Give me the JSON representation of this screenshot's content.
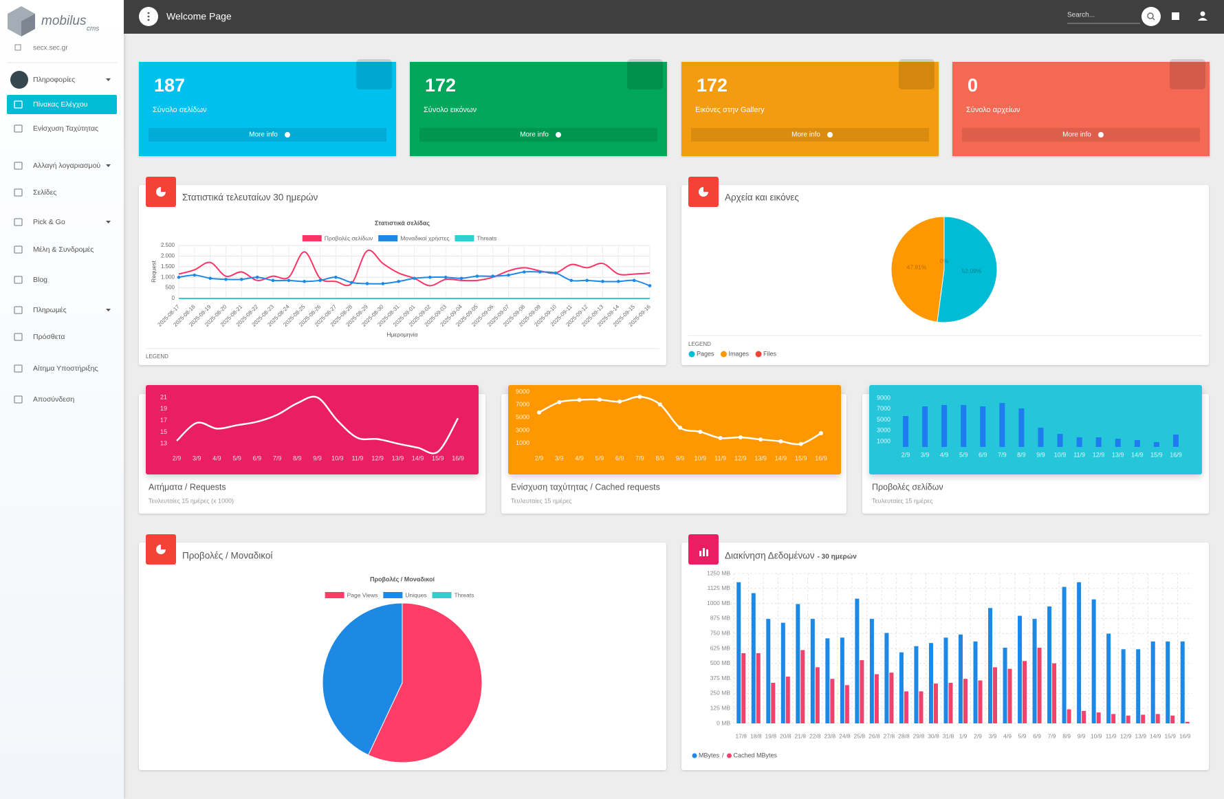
{
  "sidebar": {
    "logo": {
      "name": "mobilus",
      "sub": "cms"
    },
    "site": "secx.sec.gr",
    "menu": [
      {
        "label": "Πληροφορίες",
        "dropdown": true
      },
      {
        "label": "Πίνακας Ελέγχου",
        "active": true
      },
      {
        "label": "Ενίσχυση Ταχύτητας"
      },
      {
        "label": "Αλλαγή λογαριασμού",
        "dropdown": true
      },
      {
        "label": "Σελίδες"
      },
      {
        "label": "Pick & Go",
        "dropdown": true
      },
      {
        "label": "Μέλη & Συνδρομές"
      },
      {
        "label": "Blog"
      },
      {
        "label": "Πληρωμές",
        "dropdown": true
      },
      {
        "label": "Πρόσθετα"
      },
      {
        "label": "Αίτημα Υποστήριξης"
      },
      {
        "label": "Αποσύνδεση"
      }
    ]
  },
  "topbar": {
    "title": "Welcome Page",
    "search": "Search..."
  },
  "stats": [
    {
      "value": 187,
      "label": "Σύνολο σελίδων",
      "link": "More info",
      "color": "#00c0ef"
    },
    {
      "value": 172,
      "label": "Σύνολο εικόνων",
      "link": "More info",
      "color": "#00a65a"
    },
    {
      "value": 172,
      "label": "Εικόνες στην Gallery",
      "link": "More info",
      "color": "#f39c12"
    },
    {
      "value": 0,
      "label": "Σύνολο αρχείων",
      "link": "More info",
      "color": "#f56954"
    }
  ],
  "panels": [
    {
      "type": "line",
      "title": "Στατιστικά τελευταίων 30 ημερών",
      "chart_title": "Στατιστικά σελίδας",
      "ylabel": "Request",
      "xlabel": "Ημερομηνία",
      "legend_title": "LEGEND",
      "grid": true,
      "x": [
        "2025-08-17",
        "2025-08-18",
        "2025-08-19",
        "2025-08-20",
        "2025-08-21",
        "2025-08-22",
        "2025-08-23",
        "2025-08-24",
        "2025-08-25",
        "2025-08-26",
        "2025-08-27",
        "2025-08-28",
        "2025-08-29",
        "2025-08-30",
        "2025-08-31",
        "2025-09-01",
        "2025-09-02",
        "2025-09-03",
        "2025-09-04",
        "2025-09-05",
        "2025-09-06",
        "2025-09-07",
        "2025-09-08",
        "2025-09-09",
        "2025-09-10",
        "2025-09-11",
        "2025-09-12",
        "2025-09-13",
        "2025-09-14",
        "2025-09-15",
        "2025-09-16"
      ],
      "ylim": [
        0,
        2500
      ],
      "yticks": [
        0,
        500,
        {
          "value": 1000,
          "label": "1.000"
        },
        {
          "value": 1500,
          "label": "1.500"
        },
        {
          "value": 2000,
          "label": "2.000"
        },
        {
          "value": 2500,
          "label": "2.500"
        }
      ],
      "series": [
        {
          "name": "Προβολές σελίδων",
          "color": "#ff3366",
          "markers": false,
          "values": [
            1150,
            1350,
            1700,
            1050,
            1250,
            850,
            1050,
            1000,
            2200,
            950,
            800,
            700,
            2250,
            1650,
            1200,
            950,
            600,
            900,
            850,
            850,
            1000,
            1300,
            1450,
            1300,
            1200,
            1600,
            1450,
            1650,
            1150,
            1150,
            1200
          ]
        },
        {
          "name": "Μοναδικοί χρήστες",
          "color": "#1e88e5",
          "markers": true,
          "values": [
            1000,
            1100,
            950,
            900,
            900,
            1000,
            850,
            850,
            800,
            850,
            1000,
            750,
            700,
            700,
            800,
            950,
            1000,
            1000,
            950,
            1050,
            1050,
            1100,
            1250,
            1250,
            1200,
            850,
            850,
            800,
            800,
            850,
            600
          ]
        },
        {
          "name": "Threats",
          "color": "#2ecfcf",
          "markers": false,
          "values": [
            0,
            0,
            0,
            0,
            0,
            0,
            0,
            0,
            0,
            0,
            0,
            0,
            0,
            0,
            0,
            0,
            0,
            0,
            0,
            0,
            0,
            0,
            0,
            0,
            0,
            0,
            0,
            0,
            0,
            0,
            0
          ]
        }
      ]
    },
    {
      "type": "pie",
      "title": "Αρχεία και εικόνες",
      "legend_title": "LEGEND",
      "categories": [
        "Pages",
        "Images",
        "Files"
      ],
      "values": [
        52.09,
        47.91,
        0
      ],
      "value_labels": [
        "52.09%",
        "47.91%",
        "0%"
      ],
      "colors": [
        "#00bcd4",
        "#ff9800",
        "#f44336"
      ]
    },
    {
      "type": "line",
      "title": "Αιτήματα / Requests",
      "subtitle": "Τευλευταίες 15 ημέρες (x 1000)",
      "background": "#e91e63",
      "color": "#ffffff",
      "markers": false,
      "grid": false,
      "categories": [
        "2/9",
        "3/9",
        "4/9",
        "5/9",
        "6/9",
        "7/9",
        "8/9",
        "9/9",
        "10/9",
        "11/9",
        "12/9",
        "13/9",
        "14/9",
        "15/9",
        "16/9"
      ],
      "values": [
        13.5,
        16.6,
        15.6,
        16.2,
        16.8,
        18,
        20,
        21,
        17,
        14,
        13.8,
        13,
        12.3,
        11.6,
        17.4
      ],
      "ylim": [
        11,
        21
      ],
      "yticks": [
        13,
        15,
        17,
        19,
        21
      ]
    },
    {
      "type": "line",
      "title": "Ενίσχυση ταχύτητας / Cached requests",
      "subtitle": "Τευλευταίες 15 ημέρες",
      "background": "#ff9800",
      "color": "#ffffff",
      "markers": true,
      "grid": false,
      "categories": [
        "2/9",
        "3/9",
        "4/9",
        "5/9",
        "6/9",
        "7/9",
        "8/9",
        "9/9",
        "10/9",
        "11/9",
        "12/9",
        "13/9",
        "14/9",
        "15/9",
        "16/9"
      ],
      "values": [
        5800,
        7400,
        7750,
        7800,
        7500,
        8250,
        7070,
        3430,
        2790,
        1820,
        1930,
        1600,
        1300,
        900,
        2570
      ],
      "ylim": [
        0,
        9000
      ],
      "yticks": [
        1000,
        3000,
        5000,
        7000,
        9000
      ]
    },
    {
      "type": "bar",
      "title": "Προβολές σελίδων",
      "subtitle": "Τευλευταίες 15 ημέρες",
      "background": "#26c6da",
      "color": "#1e7bf0",
      "grid": false,
      "categories": [
        "2/9",
        "3/9",
        "4/9",
        "5/9",
        "6/9",
        "7/9",
        "8/9",
        "9/9",
        "10/9",
        "11/9",
        "12/9",
        "13/9",
        "14/9",
        "15/9",
        "16/9"
      ],
      "values": [
        5700,
        7480,
        7730,
        7730,
        7480,
        8110,
        7100,
        3550,
        2400,
        1770,
        1770,
        1520,
        1270,
        890,
        2280
      ],
      "ylim": [
        0,
        9000
      ],
      "yticks": [
        1000,
        3000,
        5000,
        7000,
        9000
      ]
    },
    {
      "type": "pie",
      "title": "Προβολές / Μοναδικοί",
      "chart_title": "Προβολές / Μοναδικοί",
      "categories": [
        "Page Views",
        "Uniques",
        "Threats"
      ],
      "values": [
        57,
        43,
        0
      ],
      "colors": [
        "#ff3d67",
        "#1e88e5",
        "#2ecfcf"
      ]
    },
    {
      "type": "groupedbar",
      "title": "Διακίνηση Δεδομένων",
      "title_suffix": "- 30 ημερών",
      "legend_separator": "/",
      "grid": true,
      "categories": [
        "17/8",
        "18/8",
        "19/8",
        "20/8",
        "21/8",
        "22/8",
        "23/8",
        "24/8",
        "25/8",
        "26/8",
        "27/8",
        "28/8",
        "29/8",
        "30/8",
        "31/8",
        "1/9",
        "2/9",
        "3/9",
        "4/9",
        "5/9",
        "6/9",
        "7/9",
        "8/9",
        "9/9",
        "10/9",
        "11/9",
        "12/9",
        "13/9",
        "14/9",
        "15/9",
        "16/9"
      ],
      "ylim": [
        0,
        1250
      ],
      "yticks": [
        {
          "value": 0,
          "label": "0 MB"
        },
        {
          "value": 125,
          "label": "125 MB"
        },
        {
          "value": 250,
          "label": "250 MB"
        },
        {
          "value": 375,
          "label": "375 MB"
        },
        {
          "value": 500,
          "label": "500 MB"
        },
        {
          "value": 625,
          "label": "625 MB"
        },
        {
          "value": 750,
          "label": "750 MB"
        },
        {
          "value": 875,
          "label": "875 MB"
        },
        {
          "value": 1000,
          "label": "1000 MB"
        },
        {
          "value": 1125,
          "label": "1125 MB"
        },
        {
          "value": 1250,
          "label": "1250 MB"
        }
      ],
      "series": [
        {
          "name": "MBytes",
          "color": "#1e88e5",
          "values": [
            1177,
            1086,
            871,
            839,
            995,
            871,
            709,
            715,
            1040,
            871,
            754,
            592,
            644,
            670,
            715,
            741,
            683,
            962,
            631,
            897,
            871,
            975,
            1138,
            1177,
            1034,
            748,
            618,
            618,
            683,
            683,
            683
          ]
        },
        {
          "name": "Cached MBytes",
          "color": "#f0436b",
          "values": [
            585,
            585,
            338,
            390,
            611,
            468,
            371,
            319,
            527,
            410,
            423,
            267,
            267,
            332,
            338,
            371,
            358,
            468,
            455,
            520,
            631,
            501,
            117,
            104,
            91,
            78,
            65,
            72,
            78,
            65,
            13
          ]
        }
      ]
    }
  ]
}
